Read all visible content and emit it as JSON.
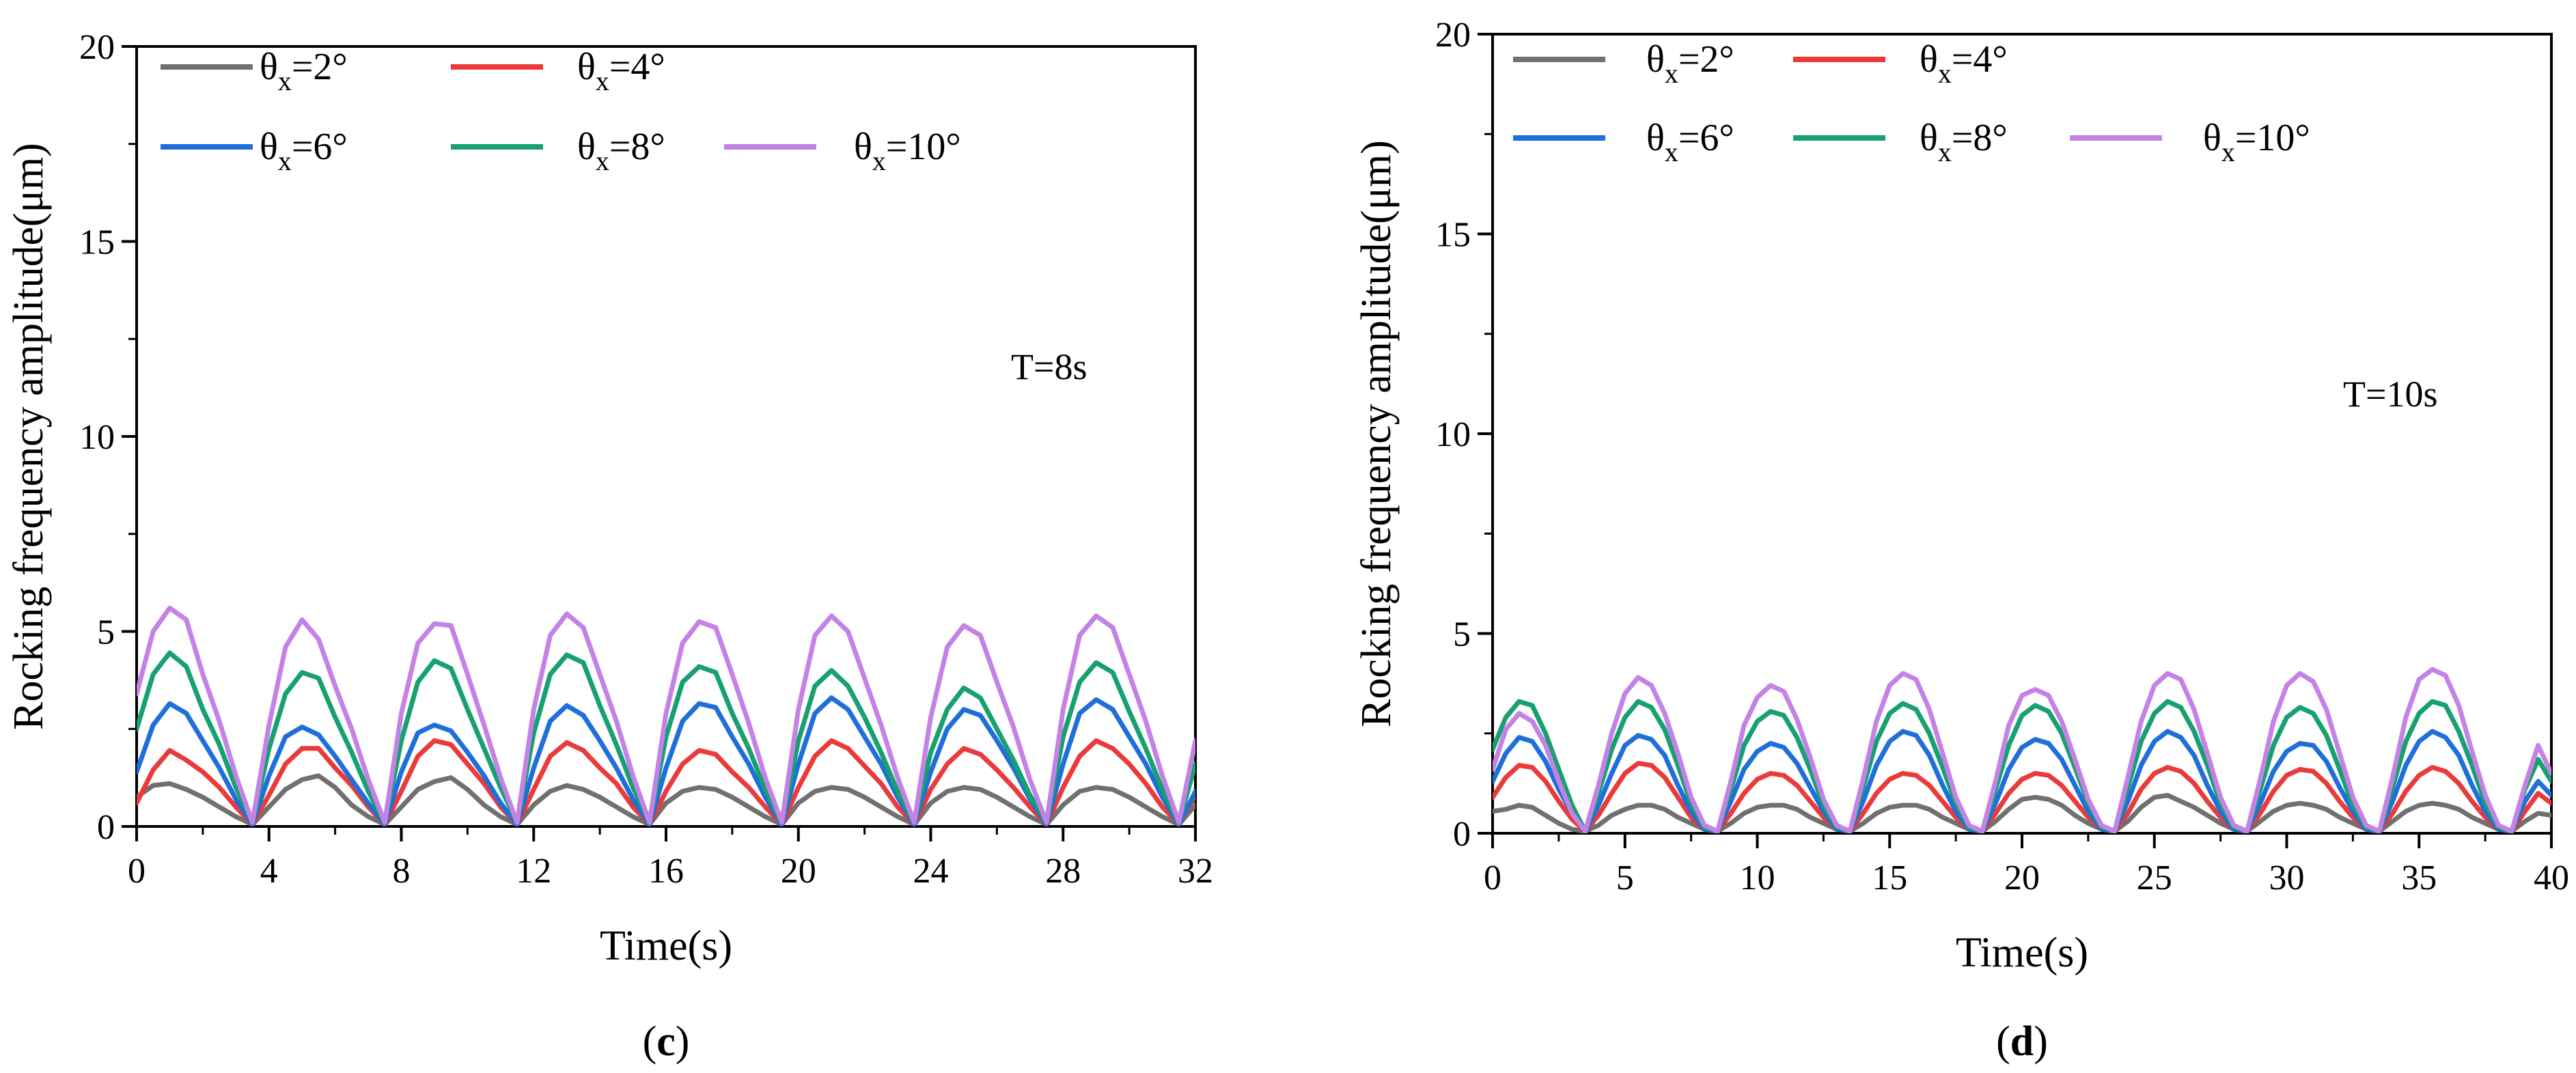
{
  "colors": {
    "theta2": "#707070",
    "theta4": "#ea3a3a",
    "theta6": "#1f6fdb",
    "theta8": "#17a070",
    "theta10": "#c482e6"
  },
  "chart_data": [
    {
      "type": "line",
      "panel_label": "c",
      "annotation": "T=8s",
      "xlabel": "Time(s)",
      "ylabel": "Rocking frequency amplitude(μm)",
      "xlim": [
        0,
        32
      ],
      "ylim": [
        0,
        20
      ],
      "xticks": [
        0,
        4,
        8,
        12,
        16,
        20,
        24,
        28,
        32
      ],
      "yticks": [
        0,
        5,
        10,
        15,
        20
      ],
      "period": 4,
      "x": [
        0,
        0.5,
        1,
        1.5,
        2,
        2.5,
        3,
        3.5,
        4,
        4.5,
        5,
        5.5,
        6,
        6.5,
        7,
        7.5,
        8,
        8.5,
        9,
        9.5,
        10,
        10.5,
        11,
        11.5,
        12,
        12.5,
        13,
        13.5,
        14,
        14.5,
        15,
        15.5,
        16,
        16.5,
        17,
        17.5,
        18,
        18.5,
        19,
        19.5,
        20,
        20.5,
        21,
        21.5,
        22,
        22.5,
        23,
        23.5,
        24,
        24.5,
        25,
        25.5,
        26,
        26.5,
        27,
        27.5,
        28,
        28.5,
        29,
        29.5,
        30,
        30.5,
        31,
        31.5,
        32
      ],
      "series": [
        {
          "name": "θx=2°",
          "symbol": "θ",
          "sub": "x",
          "suffix": "=2°",
          "color_key": "theta2",
          "values": [
            0.75,
            1.05,
            1.1,
            0.95,
            0.75,
            0.5,
            0.25,
            0.05,
            0.5,
            0.95,
            1.2,
            1.3,
            1.0,
            0.55,
            0.25,
            0.05,
            0.5,
            0.95,
            1.15,
            1.25,
            0.95,
            0.55,
            0.25,
            0.05,
            0.55,
            0.9,
            1.05,
            0.95,
            0.75,
            0.5,
            0.25,
            0.05,
            0.6,
            0.9,
            1.0,
            0.95,
            0.75,
            0.5,
            0.25,
            0.05,
            0.6,
            0.9,
            1.0,
            0.95,
            0.75,
            0.5,
            0.25,
            0.05,
            0.6,
            0.9,
            1.0,
            0.95,
            0.75,
            0.5,
            0.25,
            0.05,
            0.55,
            0.9,
            1.0,
            0.95,
            0.75,
            0.5,
            0.25,
            0.05,
            0.55
          ]
        },
        {
          "name": "θx=4°",
          "symbol": "θ",
          "sub": "x",
          "suffix": "=4°",
          "color_key": "theta4",
          "values": [
            0.6,
            1.45,
            1.95,
            1.7,
            1.4,
            1.0,
            0.5,
            0.05,
            0.8,
            1.6,
            2.0,
            2.0,
            1.5,
            1.05,
            0.5,
            0.05,
            0.9,
            1.8,
            2.2,
            2.1,
            1.6,
            1.1,
            0.5,
            0.05,
            0.95,
            1.8,
            2.15,
            1.95,
            1.5,
            1.1,
            0.5,
            0.05,
            0.9,
            1.6,
            1.95,
            1.85,
            1.4,
            1.0,
            0.5,
            0.05,
            1.0,
            1.8,
            2.2,
            2.0,
            1.55,
            1.1,
            0.5,
            0.05,
            0.95,
            1.6,
            2.0,
            1.85,
            1.45,
            1.0,
            0.5,
            0.05,
            1.0,
            1.8,
            2.2,
            2.0,
            1.6,
            1.1,
            0.5,
            0.05,
            0.8
          ]
        },
        {
          "name": "θx=6°",
          "symbol": "θ",
          "sub": "x",
          "suffix": "=6°",
          "color_key": "theta6",
          "values": [
            1.4,
            2.6,
            3.15,
            2.9,
            2.2,
            1.5,
            0.7,
            0.05,
            1.3,
            2.3,
            2.55,
            2.35,
            1.8,
            1.2,
            0.6,
            0.05,
            1.4,
            2.4,
            2.6,
            2.45,
            1.9,
            1.3,
            0.6,
            0.05,
            1.5,
            2.7,
            3.1,
            2.85,
            2.2,
            1.5,
            0.7,
            0.05,
            1.5,
            2.7,
            3.15,
            3.05,
            2.3,
            1.6,
            0.75,
            0.05,
            1.6,
            2.9,
            3.3,
            3.0,
            2.3,
            1.6,
            0.75,
            0.05,
            1.4,
            2.5,
            3.0,
            2.85,
            2.2,
            1.5,
            0.7,
            0.05,
            1.6,
            2.9,
            3.25,
            3.0,
            2.3,
            1.6,
            0.75,
            0.05,
            0.9
          ]
        },
        {
          "name": "θx=8°",
          "symbol": "θ",
          "sub": "x",
          "suffix": "=8°",
          "color_key": "theta8",
          "values": [
            2.5,
            3.9,
            4.45,
            4.1,
            3.0,
            2.1,
            1.0,
            0.1,
            2.0,
            3.4,
            3.95,
            3.8,
            2.8,
            1.9,
            0.9,
            0.1,
            2.2,
            3.7,
            4.25,
            4.05,
            3.0,
            2.0,
            1.0,
            0.1,
            2.4,
            3.9,
            4.4,
            4.2,
            3.1,
            2.1,
            1.0,
            0.1,
            2.3,
            3.7,
            4.1,
            3.95,
            2.9,
            2.0,
            0.95,
            0.1,
            2.2,
            3.6,
            4.0,
            3.6,
            2.8,
            1.9,
            0.9,
            0.1,
            1.9,
            3.0,
            3.55,
            3.3,
            2.5,
            1.7,
            0.8,
            0.1,
            2.3,
            3.7,
            4.2,
            3.95,
            2.95,
            2.0,
            0.95,
            0.1,
            1.6
          ]
        },
        {
          "name": "θx=10°",
          "symbol": "θ",
          "sub": "x",
          "suffix": "=10°",
          "color_key": "theta10",
          "values": [
            3.4,
            5.0,
            5.6,
            5.3,
            3.9,
            2.7,
            1.3,
            0.1,
            2.6,
            4.6,
            5.3,
            4.8,
            3.6,
            2.5,
            1.2,
            0.1,
            2.9,
            4.7,
            5.2,
            5.15,
            3.9,
            2.6,
            1.25,
            0.1,
            3.0,
            4.9,
            5.45,
            5.1,
            3.9,
            2.7,
            1.3,
            0.1,
            2.9,
            4.7,
            5.25,
            5.1,
            3.9,
            2.65,
            1.25,
            0.1,
            3.0,
            4.9,
            5.4,
            5.0,
            3.8,
            2.6,
            1.25,
            0.1,
            2.8,
            4.6,
            5.15,
            4.9,
            3.7,
            2.55,
            1.2,
            0.1,
            3.0,
            4.9,
            5.4,
            5.1,
            3.9,
            2.7,
            1.3,
            0.1,
            2.2
          ]
        }
      ]
    },
    {
      "type": "line",
      "panel_label": "d",
      "annotation": "T=10s",
      "xlabel": "Time(s)",
      "ylabel": "Rocking frequency amplitude(μm)",
      "xlim": [
        0,
        40
      ],
      "ylim": [
        0,
        20
      ],
      "xticks": [
        0,
        5,
        10,
        15,
        20,
        25,
        30,
        35,
        40
      ],
      "yticks": [
        0,
        5,
        10,
        15,
        20
      ],
      "period": 5,
      "x": [
        0,
        0.5,
        1,
        1.5,
        2,
        2.5,
        3,
        3.5,
        4,
        4.5,
        5,
        5.5,
        6,
        6.5,
        7,
        7.5,
        8,
        8.5,
        9,
        9.5,
        10,
        10.5,
        11,
        11.5,
        12,
        12.5,
        13,
        13.5,
        14,
        14.5,
        15,
        15.5,
        16,
        16.5,
        17,
        17.5,
        18,
        18.5,
        19,
        19.5,
        20,
        20.5,
        21,
        21.5,
        22,
        22.5,
        23,
        23.5,
        24,
        24.5,
        25,
        25.5,
        26,
        26.5,
        27,
        27.5,
        28,
        28.5,
        29,
        29.5,
        30,
        30.5,
        31,
        31.5,
        32,
        32.5,
        33,
        33.5,
        34,
        34.5,
        35,
        35.5,
        36,
        36.5,
        37,
        37.5,
        38,
        38.5,
        39,
        39.5,
        40
      ],
      "series": [
        {
          "name": "θx=2°",
          "symbol": "θ",
          "sub": "x",
          "suffix": "=2°",
          "color_key": "theta2",
          "values": [
            0.55,
            0.6,
            0.7,
            0.65,
            0.45,
            0.25,
            0.1,
            0.05,
            0.2,
            0.45,
            0.6,
            0.7,
            0.7,
            0.6,
            0.4,
            0.25,
            0.1,
            0.05,
            0.25,
            0.5,
            0.65,
            0.7,
            0.7,
            0.6,
            0.4,
            0.25,
            0.1,
            0.05,
            0.25,
            0.5,
            0.65,
            0.7,
            0.7,
            0.6,
            0.4,
            0.25,
            0.1,
            0.05,
            0.3,
            0.6,
            0.85,
            0.9,
            0.85,
            0.7,
            0.45,
            0.25,
            0.1,
            0.05,
            0.3,
            0.65,
            0.9,
            0.95,
            0.8,
            0.65,
            0.45,
            0.25,
            0.1,
            0.05,
            0.3,
            0.55,
            0.7,
            0.75,
            0.7,
            0.6,
            0.4,
            0.25,
            0.1,
            0.05,
            0.3,
            0.55,
            0.7,
            0.75,
            0.7,
            0.6,
            0.4,
            0.25,
            0.1,
            0.05,
            0.3,
            0.5,
            0.45
          ]
        },
        {
          "name": "θx=4°",
          "symbol": "θ",
          "sub": "x",
          "suffix": "=4°",
          "color_key": "theta4",
          "values": [
            0.9,
            1.4,
            1.7,
            1.65,
            1.3,
            0.8,
            0.35,
            0.05,
            0.45,
            1.0,
            1.5,
            1.75,
            1.7,
            1.4,
            0.9,
            0.4,
            0.1,
            0.05,
            0.5,
            1.0,
            1.35,
            1.5,
            1.45,
            1.2,
            0.8,
            0.4,
            0.1,
            0.05,
            0.5,
            1.0,
            1.35,
            1.5,
            1.45,
            1.2,
            0.8,
            0.4,
            0.1,
            0.05,
            0.5,
            1.0,
            1.35,
            1.5,
            1.45,
            1.2,
            0.8,
            0.4,
            0.1,
            0.05,
            0.5,
            1.1,
            1.5,
            1.65,
            1.55,
            1.25,
            0.8,
            0.4,
            0.1,
            0.05,
            0.5,
            1.05,
            1.45,
            1.6,
            1.55,
            1.25,
            0.8,
            0.4,
            0.1,
            0.05,
            0.5,
            1.05,
            1.45,
            1.65,
            1.55,
            1.25,
            0.8,
            0.4,
            0.1,
            0.05,
            0.55,
            1.0,
            0.75
          ]
        },
        {
          "name": "θx=6°",
          "symbol": "θ",
          "sub": "x",
          "suffix": "=6°",
          "color_key": "theta6",
          "values": [
            1.3,
            2.0,
            2.4,
            2.3,
            1.8,
            1.1,
            0.5,
            0.05,
            0.7,
            1.5,
            2.2,
            2.45,
            2.35,
            1.95,
            1.2,
            0.55,
            0.1,
            0.05,
            0.8,
            1.6,
            2.05,
            2.25,
            2.15,
            1.75,
            1.15,
            0.55,
            0.1,
            0.05,
            0.8,
            1.7,
            2.3,
            2.55,
            2.45,
            1.95,
            1.2,
            0.55,
            0.1,
            0.05,
            0.75,
            1.6,
            2.15,
            2.35,
            2.25,
            1.85,
            1.2,
            0.55,
            0.1,
            0.05,
            0.8,
            1.7,
            2.3,
            2.55,
            2.4,
            1.95,
            1.2,
            0.55,
            0.1,
            0.05,
            0.75,
            1.55,
            2.05,
            2.25,
            2.2,
            1.8,
            1.15,
            0.55,
            0.1,
            0.05,
            0.8,
            1.7,
            2.3,
            2.55,
            2.4,
            1.95,
            1.2,
            0.55,
            0.1,
            0.05,
            0.8,
            1.3,
            0.95
          ]
        },
        {
          "name": "θx=8°",
          "symbol": "θ",
          "sub": "x",
          "suffix": "=8°",
          "color_key": "theta8",
          "values": [
            2.1,
            2.9,
            3.3,
            3.2,
            2.5,
            1.6,
            0.7,
            0.05,
            1.0,
            2.1,
            2.9,
            3.3,
            3.15,
            2.6,
            1.7,
            0.75,
            0.15,
            0.05,
            1.1,
            2.2,
            2.8,
            3.05,
            2.95,
            2.4,
            1.6,
            0.7,
            0.15,
            0.05,
            1.15,
            2.3,
            3.0,
            3.25,
            3.1,
            2.5,
            1.65,
            0.75,
            0.15,
            0.05,
            1.1,
            2.2,
            2.95,
            3.2,
            3.05,
            2.5,
            1.65,
            0.75,
            0.15,
            0.05,
            1.15,
            2.3,
            3.0,
            3.3,
            3.15,
            2.55,
            1.7,
            0.75,
            0.15,
            0.05,
            1.1,
            2.2,
            2.9,
            3.15,
            3.0,
            2.45,
            1.6,
            0.7,
            0.15,
            0.05,
            1.15,
            2.3,
            3.0,
            3.3,
            3.2,
            2.55,
            1.7,
            0.75,
            0.15,
            0.05,
            1.1,
            1.85,
            1.3
          ]
        },
        {
          "name": "θx=10°",
          "symbol": "θ",
          "sub": "x",
          "suffix": "=10°",
          "color_key": "theta10",
          "values": [
            1.6,
            2.6,
            3.0,
            2.8,
            2.2,
            1.3,
            0.5,
            0.05,
            1.2,
            2.5,
            3.5,
            3.9,
            3.7,
            3.0,
            2.0,
            0.9,
            0.2,
            0.05,
            1.3,
            2.7,
            3.4,
            3.7,
            3.55,
            2.85,
            1.9,
            0.85,
            0.2,
            0.05,
            1.35,
            2.8,
            3.7,
            4.0,
            3.85,
            3.1,
            2.0,
            0.9,
            0.2,
            0.05,
            1.3,
            2.7,
            3.45,
            3.6,
            3.45,
            2.8,
            1.85,
            0.85,
            0.2,
            0.05,
            1.4,
            2.8,
            3.7,
            4.0,
            3.85,
            3.1,
            2.0,
            0.9,
            0.2,
            0.05,
            1.35,
            2.8,
            3.7,
            4.0,
            3.8,
            3.1,
            2.0,
            0.9,
            0.2,
            0.05,
            1.4,
            2.9,
            3.85,
            4.1,
            3.95,
            3.2,
            2.05,
            0.95,
            0.2,
            0.05,
            1.2,
            2.2,
            1.5
          ]
        }
      ]
    }
  ]
}
